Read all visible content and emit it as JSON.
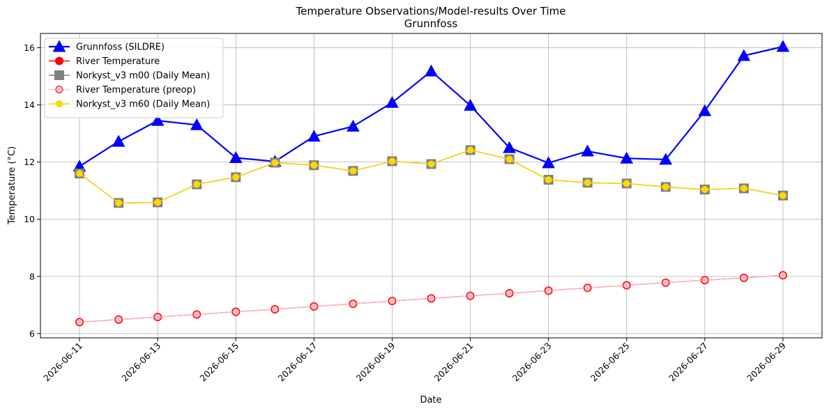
{
  "chart_data": {
    "type": "line",
    "title": "Temperature Observations/Model-results Over Time",
    "subtitle": "Grunnfoss",
    "xlabel": "Date",
    "ylabel": "Temperature (°C)",
    "x": [
      "2026-06-11",
      "2026-06-12",
      "2026-06-13",
      "2026-06-14",
      "2026-06-15",
      "2026-06-16",
      "2026-06-17",
      "2026-06-18",
      "2026-06-19",
      "2026-06-20",
      "2026-06-21",
      "2026-06-22",
      "2026-06-23",
      "2026-06-24",
      "2026-06-25",
      "2026-06-26",
      "2026-06-27",
      "2026-06-28",
      "2026-06-29"
    ],
    "xticks": [
      "2026-06-11",
      "2026-06-13",
      "2026-06-15",
      "2026-06-17",
      "2026-06-19",
      "2026-06-21",
      "2026-06-23",
      "2026-06-25",
      "2026-06-27",
      "2026-06-29"
    ],
    "xlim": [
      "2026-06-10",
      "2026-06-30"
    ],
    "yticks": [
      6,
      8,
      10,
      12,
      14,
      16
    ],
    "ylim": [
      5.85,
      16.5
    ],
    "grid": true,
    "legend_position": "top-left",
    "series": [
      {
        "name": "Grunnfoss (SILDRE)",
        "color": "#0000ff",
        "marker": "triangle",
        "values": [
          11.85,
          12.72,
          13.45,
          13.3,
          12.15,
          12.02,
          12.9,
          13.25,
          14.08,
          15.18,
          13.98,
          12.5,
          11.97,
          12.38,
          12.13,
          12.09,
          13.79,
          15.72,
          16.04
        ]
      },
      {
        "name": "River Temperature",
        "color": "#ff0000",
        "marker": "circle",
        "values": [
          6.4,
          6.49,
          6.58,
          6.67,
          6.76,
          6.85,
          6.95,
          7.04,
          7.14,
          7.23,
          7.32,
          7.41,
          7.5,
          7.6,
          7.69,
          7.78,
          7.87,
          7.95,
          8.04
        ]
      },
      {
        "name": "Norkyst_v3 m00 (Daily Mean)",
        "color": "#808080",
        "marker": "square",
        "values": [
          11.6,
          10.57,
          10.59,
          11.22,
          11.47,
          11.98,
          11.89,
          11.69,
          12.03,
          11.93,
          12.42,
          12.1,
          11.38,
          11.28,
          11.25,
          11.13,
          11.04,
          11.08,
          10.83
        ]
      },
      {
        "name": "River Temperature (preop)",
        "color": "#ffc0cb",
        "marker": "circle",
        "values": [
          6.4,
          6.49,
          6.58,
          6.67,
          6.76,
          6.85,
          6.95,
          7.04,
          7.14,
          7.23,
          7.32,
          7.41,
          7.5,
          7.6,
          7.69,
          7.78,
          7.87,
          7.95,
          8.04
        ]
      },
      {
        "name": "Norkyst_v3 m60 (Daily Mean)",
        "color": "#ffd700",
        "marker": "circle",
        "values": [
          11.6,
          10.57,
          10.59,
          11.22,
          11.47,
          11.98,
          11.89,
          11.69,
          12.03,
          11.93,
          12.42,
          12.1,
          11.38,
          11.28,
          11.25,
          11.13,
          11.04,
          11.08,
          10.83
        ]
      }
    ]
  }
}
